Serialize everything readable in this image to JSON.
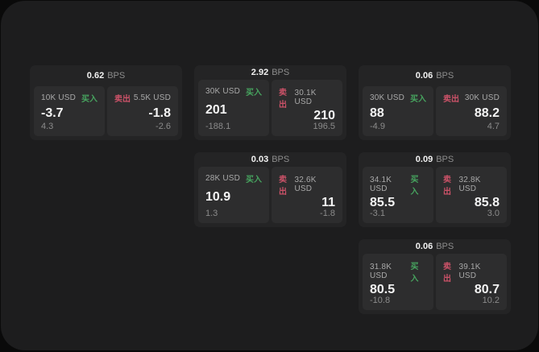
{
  "labels": {
    "bps_unit": "BPS",
    "buy": "买入",
    "sell": "卖出"
  },
  "colors": {
    "outer_background": "#0a0a0a",
    "surface": "#1d1d1e",
    "card_background": "#242425",
    "panel_background": "#2d2d2e",
    "buy_accent": "#47a45f",
    "sell_accent": "#cb5268"
  },
  "cards": [
    {
      "bps": "0.62",
      "buy": {
        "size": "10K USD",
        "value": "-3.7",
        "delta": "4.3"
      },
      "sell": {
        "size": "5.5K USD",
        "value": "-1.8",
        "delta": "-2.6"
      }
    },
    {
      "bps": "2.92",
      "buy": {
        "size": "30K USD",
        "value": "201",
        "delta": "-188.1"
      },
      "sell": {
        "size": "30.1K USD",
        "value": "210",
        "delta": "196.5"
      }
    },
    {
      "bps": "0.06",
      "buy": {
        "size": "30K USD",
        "value": "88",
        "delta": "-4.9"
      },
      "sell": {
        "size": "30K USD",
        "value": "88.2",
        "delta": "4.7"
      }
    },
    {
      "bps": "0.03",
      "buy": {
        "size": "28K USD",
        "value": "10.9",
        "delta": "1.3"
      },
      "sell": {
        "size": "32.6K USD",
        "value": "11",
        "delta": "-1.8"
      }
    },
    {
      "bps": "0.09",
      "buy": {
        "size": "34.1K USD",
        "value": "85.5",
        "delta": "-3.1"
      },
      "sell": {
        "size": "32.8K USD",
        "value": "85.8",
        "delta": "3.0"
      }
    },
    {
      "bps": "0.06",
      "buy": {
        "size": "31.8K USD",
        "value": "80.5",
        "delta": "-10.8"
      },
      "sell": {
        "size": "39.1K USD",
        "value": "80.7",
        "delta": "10.2"
      }
    }
  ]
}
